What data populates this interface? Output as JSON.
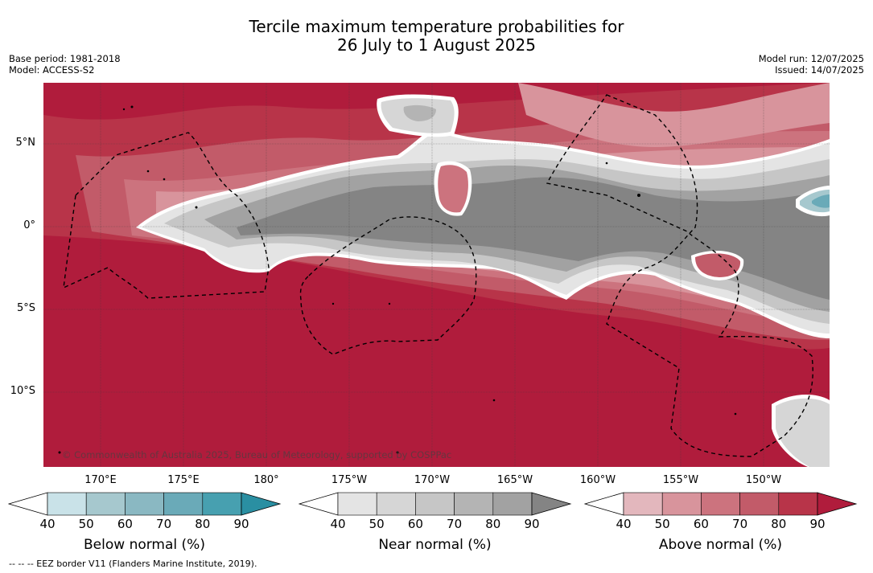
{
  "header": {
    "title_line1": "Tercile maximum temperature probabilities for",
    "title_line2": "26 July to 1 August 2025",
    "base_period": "Base period: 1981-2018",
    "model": "Model: ACCESS-S2",
    "model_run": "Model run: 12/07/2025",
    "issued": "Issued: 14/07/2025"
  },
  "map": {
    "copyright": "© Commonwealth of Australia 2025, Bureau of Meteorology, supported by COSPPac",
    "lat_labels": [
      "5°N",
      "0°",
      "5°S",
      "10°S"
    ],
    "lon_labels": [
      "170°E",
      "175°E",
      "180°",
      "175°W",
      "170°W",
      "165°W",
      "160°W",
      "155°W",
      "150°W"
    ]
  },
  "colorbars": [
    {
      "title": "Below normal (%)",
      "ticks": [
        "40",
        "50",
        "60",
        "70",
        "80",
        "90"
      ],
      "colors": [
        "#c9e2e8",
        "#a6c8ce",
        "#8ab8c2",
        "#6aaab8",
        "#47a0b0",
        "#2a8fa2"
      ]
    },
    {
      "title": "Near normal (%)",
      "ticks": [
        "40",
        "50",
        "60",
        "70",
        "80",
        "90"
      ],
      "colors": [
        "#e4e4e4",
        "#d6d6d6",
        "#c6c6c6",
        "#b4b4b4",
        "#a2a2a2",
        "#848484"
      ]
    },
    {
      "title": "Above normal (%)",
      "ticks": [
        "40",
        "50",
        "60",
        "70",
        "80",
        "90"
      ],
      "colors": [
        "#e3b7bd",
        "#d8949c",
        "#cc737e",
        "#c25b69",
        "#b83449",
        "#b01c3c"
      ]
    }
  ],
  "legend": {
    "eez_note": "--  --  -- EEZ border V11 (Flanders Marine Institute, 2019)."
  }
}
